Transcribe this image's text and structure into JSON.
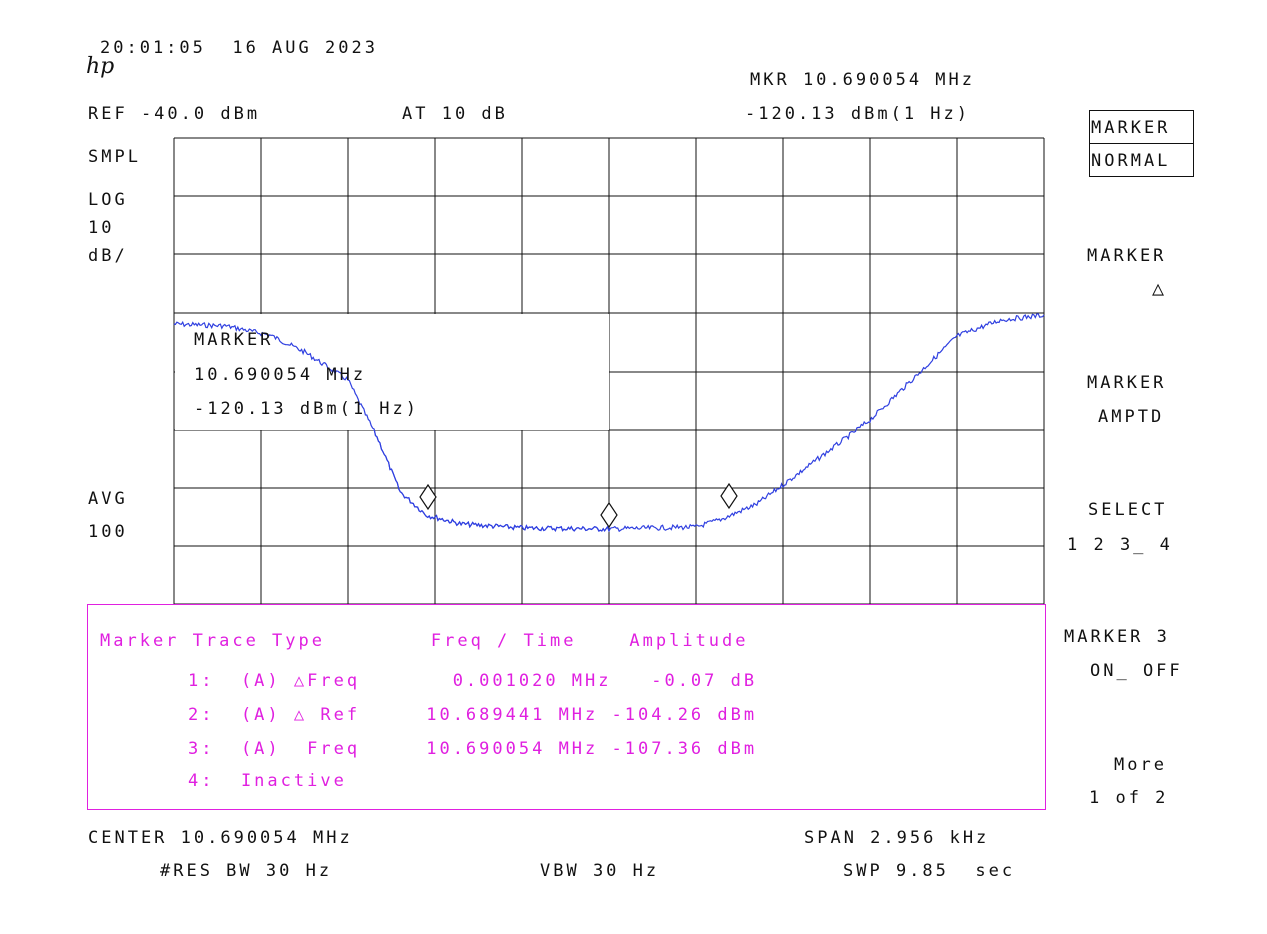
{
  "header": {
    "timestamp": "20:01:05  16 AUG 2023",
    "logo": "hp",
    "marker_readout": "MKR 10.690054 MHz",
    "marker_amp_readout": "-120.13 dBm(1 Hz)",
    "ref_level": "REF -40.0 dBm",
    "attenuation": "AT 10 dB"
  },
  "left_annotations": {
    "detector": "SMPL",
    "scale_type": "LOG",
    "scale_value": "10",
    "scale_unit": "dB/",
    "avg_label": "AVG",
    "avg_count": "100"
  },
  "marker_inset": {
    "title": "MARKER",
    "freq": "10.690054 MHz",
    "amp": "-120.13 dBm(1 Hz)"
  },
  "marker_table": {
    "header": "Marker Trace Type        Freq / Time    Amplitude",
    "rows": [
      "1:  (A) △Freq       0.001020 MHz   -0.07 dB",
      "2:  (A) △ Ref     10.689441 MHz -104.26 dBm",
      "3:  (A)  Freq     10.690054 MHz -107.36 dBm",
      "4:  Inactive"
    ]
  },
  "footer": {
    "center": "CENTER 10.690054 MHz",
    "span": "SPAN 2.956 kHz",
    "rbw": "#RES BW 30 Hz",
    "vbw": "VBW 30 Hz",
    "sweep": "SWP 9.85  sec"
  },
  "softkeys": [
    {
      "line1": "MARKER",
      "line2": "NORMAL",
      "boxed": true
    },
    {
      "line1": "MARKER",
      "line2": "△"
    },
    {
      "line1": "MARKER",
      "line2": "AMPTD"
    },
    {
      "line1": "SELECT",
      "line2": "1 2 3_ 4"
    },
    {
      "line1": "MARKER 3",
      "line2": "ON_ OFF"
    },
    {
      "line1": "More",
      "line2": "1 of 2"
    }
  ],
  "colors": {
    "trace": "#3040e0",
    "grid": "#111111",
    "table": "#e020e0"
  }
}
